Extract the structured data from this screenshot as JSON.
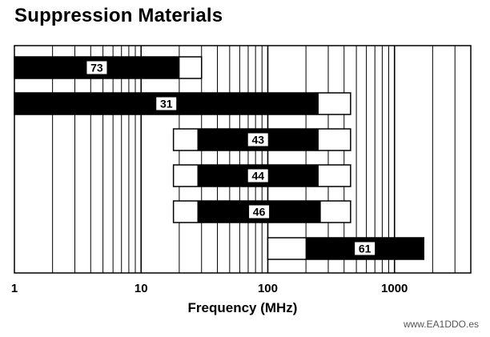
{
  "chart_data": {
    "type": "bar",
    "orientation": "horizontal",
    "title": "Suppression Materials",
    "xlabel": "Frequency (MHz)",
    "ylabel": "",
    "xscale": "log",
    "xlim": [
      1,
      4000
    ],
    "xticks": [
      1,
      10,
      100,
      1000
    ],
    "xtick_labels": [
      "1",
      "10",
      "100",
      "1000"
    ],
    "grid": true,
    "materials": [
      {
        "name": "73",
        "usable_range": [
          1,
          30
        ],
        "optimal_range": [
          1,
          20
        ]
      },
      {
        "name": "31",
        "usable_range": [
          1,
          450
        ],
        "optimal_range": [
          1,
          250
        ]
      },
      {
        "name": "43",
        "usable_range": [
          18,
          450
        ],
        "optimal_range": [
          28,
          250
        ]
      },
      {
        "name": "44",
        "usable_range": [
          18,
          450
        ],
        "optimal_range": [
          28,
          250
        ]
      },
      {
        "name": "46",
        "usable_range": [
          18,
          450
        ],
        "optimal_range": [
          28,
          260
        ]
      },
      {
        "name": "61",
        "usable_range": [
          100,
          1700
        ],
        "optimal_range": [
          200,
          1700
        ]
      }
    ],
    "colors": {
      "optimal": "#000000",
      "usable": "#ffffff",
      "outline": "#000000"
    }
  },
  "watermark": "www.EA1DDO.es"
}
